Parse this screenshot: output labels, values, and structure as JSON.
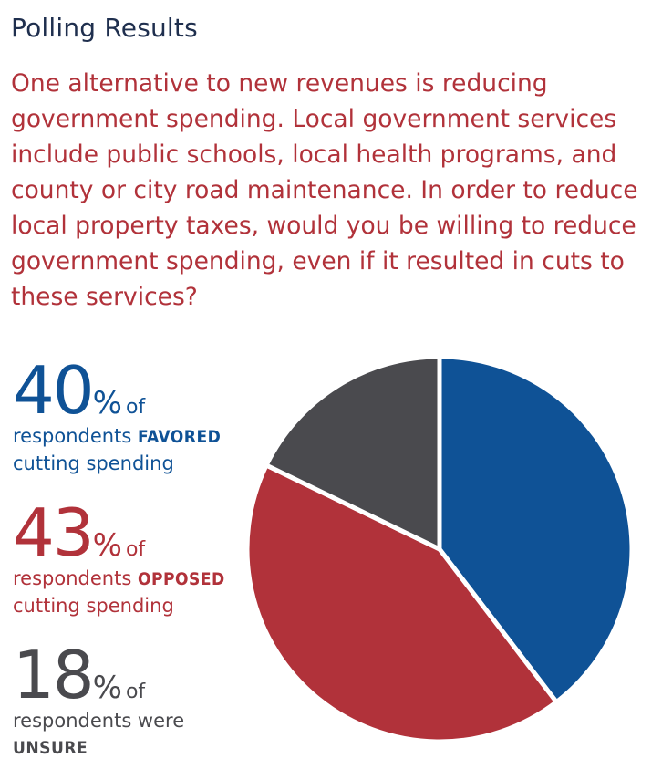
{
  "title": "Polling Results",
  "question": "One alternative to new revenues is reducing government spending. Local government services include public schools, local health programs, and county or city road maintenance. In order to reduce local property taxes, would you be willing to reduce government spending, even if it resulted in cuts to these services?",
  "stats": {
    "favored": {
      "number": "40",
      "percent_sign": "%",
      "of": "of",
      "line1_text": "respondents ",
      "keyword": "FAVORED",
      "line2": "cutting spending",
      "color": "#0f5296"
    },
    "opposed": {
      "number": "43",
      "percent_sign": "%",
      "of": "of",
      "line1_text": "respondents ",
      "keyword": "OPPOSED",
      "line2": "cutting spending",
      "color": "#b1323a"
    },
    "unsure": {
      "number": "18",
      "percent_sign": "%",
      "of": "of",
      "line1_text": "respondents were",
      "keyword": "UNSURE",
      "color": "#4a4a4e"
    }
  },
  "chart_data": {
    "type": "pie",
    "slices": [
      {
        "label": "FAVORED",
        "value": 40,
        "color": "#0f5296"
      },
      {
        "label": "OPPOSED",
        "value": 43,
        "color": "#b1323a"
      },
      {
        "label": "UNSURE",
        "value": 18,
        "color": "#4a4a4e"
      }
    ],
    "start_angle_deg": 0,
    "direction": "clockwise",
    "separator_color": "#ffffff"
  }
}
